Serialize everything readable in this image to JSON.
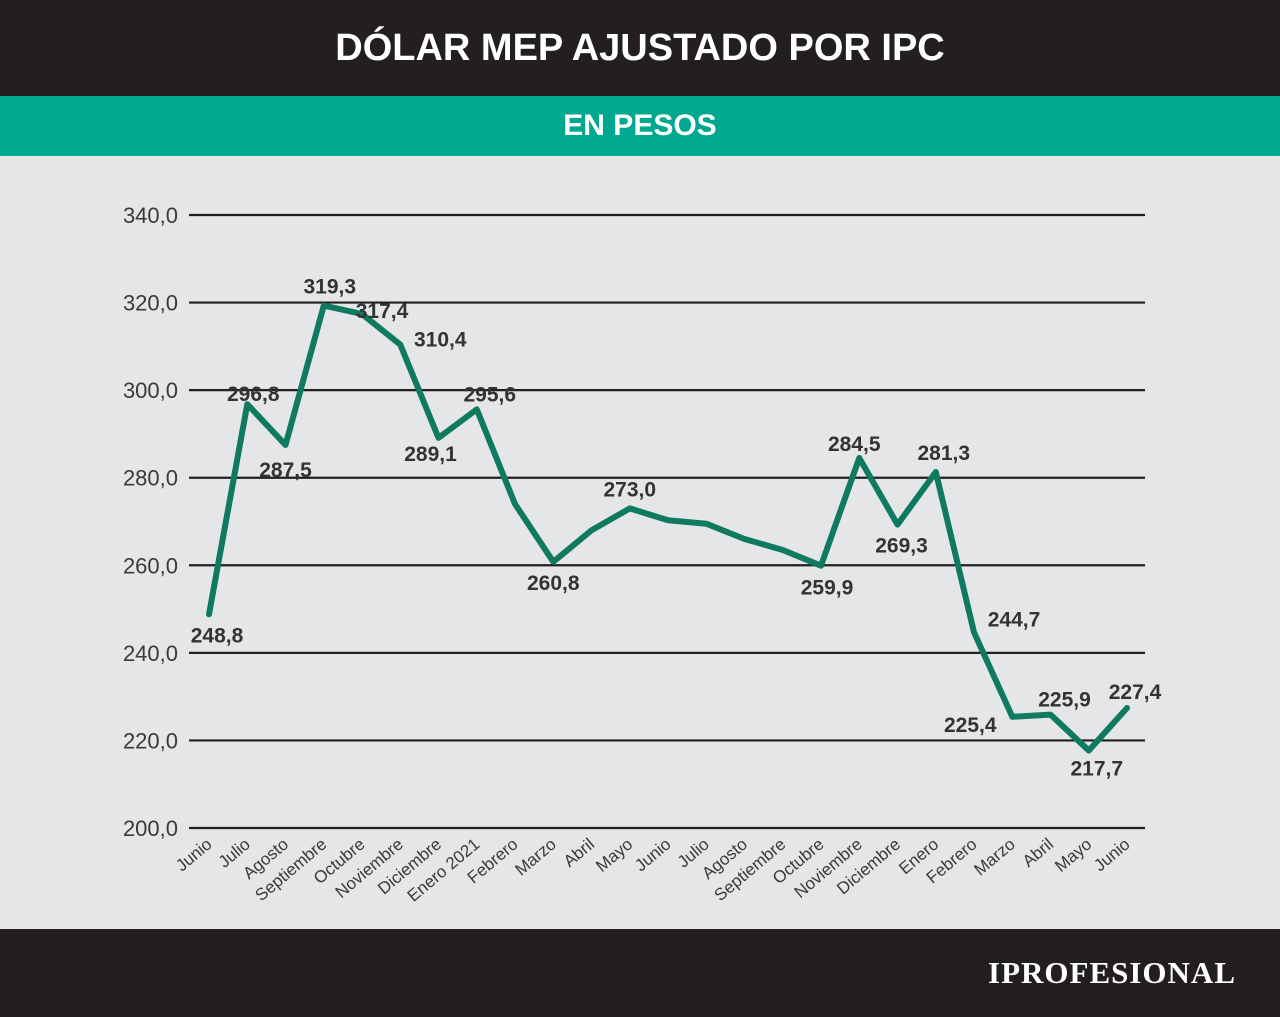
{
  "header": {
    "title": "DÓLAR MEP AJUSTADO POR IPC"
  },
  "subheader": {
    "label": "EN PESOS"
  },
  "footer": {
    "brand": "IPROFESIONAL"
  },
  "colors": {
    "title_bg": "#231f20",
    "subtitle_bg": "#00a88f",
    "line": "#0f7a5f",
    "grid": "#231f20",
    "background": "#e4e6e7"
  },
  "chart_data": {
    "type": "line",
    "title": "DÓLAR MEP AJUSTADO POR IPC",
    "subtitle": "EN PESOS",
    "xlabel": "",
    "ylabel": "",
    "ylim": [
      200,
      340
    ],
    "y_ticks": [
      "200,0",
      "220,0",
      "240,0",
      "260,0",
      "280,0",
      "300,0",
      "320,0",
      "340,0"
    ],
    "grid": true,
    "categories": [
      "Junio",
      "Julio",
      "Agosto",
      "Septiembre",
      "Octubre",
      "Noviembre",
      "Diciembre",
      "Enero 2021",
      "Febrero",
      "Marzo",
      "Abril",
      "Mayo",
      "Junio",
      "Julio",
      "Agosto",
      "Septiembre",
      "Octubre",
      "Noviembre",
      "Diciembre",
      "Enero",
      "Febrero",
      "Marzo",
      "Abril",
      "Mayo",
      "Junio"
    ],
    "values": [
      248.8,
      296.8,
      287.5,
      319.3,
      317.4,
      310.4,
      289.1,
      295.6,
      274.0,
      260.8,
      268.0,
      273.0,
      270.3,
      269.5,
      266.0,
      263.5,
      259.9,
      284.5,
      269.3,
      281.3,
      244.7,
      225.4,
      225.9,
      217.7,
      227.4
    ],
    "data_labels": [
      "248,8",
      "296,8",
      "287,5",
      "319,3",
      "317,4",
      "310,4",
      "289,1",
      "295,6",
      "",
      "260,8",
      "",
      "273,0",
      "",
      "",
      "",
      "",
      "259,9",
      "284,5",
      "269,3",
      "281,3",
      "244,7",
      "225,4",
      "225,9",
      "217,7",
      "227,4"
    ]
  }
}
